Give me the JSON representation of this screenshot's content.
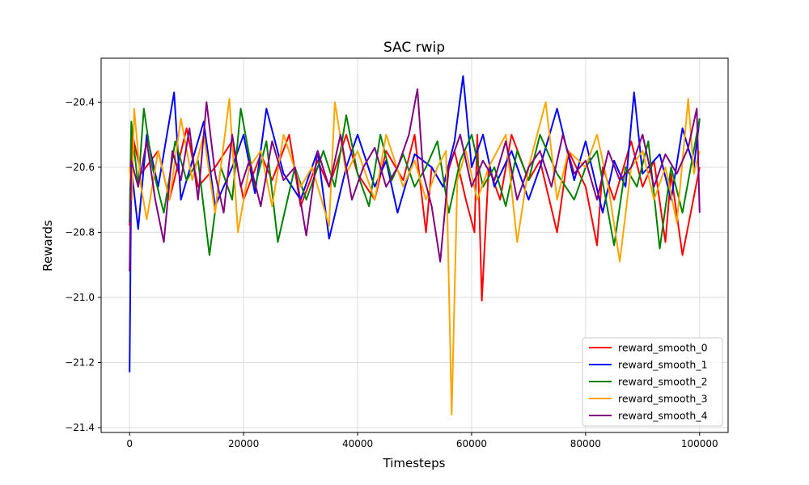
{
  "chart_data": {
    "type": "line",
    "title": "SAC rwip",
    "xlabel": "Timesteps",
    "ylabel": "Rewards",
    "xlim": [
      -5000,
      105000
    ],
    "ylim": [
      -21.415,
      -20.265
    ],
    "x_ticks": [
      0,
      20000,
      40000,
      60000,
      80000,
      100000
    ],
    "x_tick_labels": [
      "0",
      "20000",
      "40000",
      "60000",
      "80000",
      "100000"
    ],
    "y_ticks": [
      -21.4,
      -21.2,
      -21.0,
      -20.8,
      -20.6,
      -20.4
    ],
    "y_tick_labels": [
      "−21.4",
      "−21.2",
      "−21.0",
      "−20.8",
      "−20.6",
      "−20.4"
    ],
    "grid": true,
    "legend_position": "lower-right",
    "series": [
      {
        "name": "reward_smooth_0",
        "color": "#ff0000",
        "x": [
          0,
          500,
          2000,
          5000,
          7000,
          10000,
          12000,
          15000,
          18000,
          20000,
          23000,
          25000,
          28000,
          30000,
          33000,
          35000,
          38000,
          40000,
          43000,
          45000,
          48000,
          50000,
          52000,
          53000,
          55000,
          57000,
          59000,
          60500,
          61000,
          61800,
          63000,
          65000,
          67000,
          70000,
          72000,
          75000,
          77000,
          80000,
          82000,
          83000,
          85000,
          88000,
          90000,
          92000,
          94000,
          95000,
          97000,
          100000
        ],
        "y": [
          -20.78,
          -20.5,
          -20.62,
          -20.55,
          -20.7,
          -20.48,
          -20.66,
          -20.6,
          -20.52,
          -20.7,
          -20.56,
          -20.64,
          -20.5,
          -20.72,
          -20.58,
          -20.66,
          -20.5,
          -20.62,
          -20.7,
          -20.55,
          -20.64,
          -20.5,
          -20.8,
          -20.6,
          -20.66,
          -20.55,
          -20.7,
          -20.8,
          -20.5,
          -21.01,
          -20.6,
          -20.7,
          -20.5,
          -20.64,
          -20.58,
          -20.8,
          -20.55,
          -20.66,
          -20.84,
          -20.6,
          -20.7,
          -20.52,
          -20.66,
          -20.58,
          -20.83,
          -20.62,
          -20.87,
          -20.6
        ]
      },
      {
        "name": "reward_smooth_1",
        "color": "#0000ff",
        "x": [
          0,
          300,
          1500,
          3000,
          5000,
          7800,
          9000,
          11000,
          13000,
          15000,
          18000,
          20000,
          22000,
          24000,
          27000,
          30000,
          33000,
          35000,
          38000,
          40000,
          43000,
          45000,
          47000,
          50000,
          53000,
          55000,
          57000,
          58500,
          60000,
          62000,
          64000,
          67000,
          70000,
          72000,
          75000,
          78000,
          80000,
          83000,
          85000,
          87000,
          88500,
          90000,
          93000,
          95000,
          97000,
          99000,
          100000
        ],
        "y": [
          -21.23,
          -20.6,
          -20.79,
          -20.5,
          -20.66,
          -20.37,
          -20.7,
          -20.58,
          -20.46,
          -20.72,
          -20.6,
          -20.5,
          -20.68,
          -20.42,
          -20.62,
          -20.7,
          -20.55,
          -20.82,
          -20.6,
          -20.5,
          -20.66,
          -20.58,
          -20.74,
          -20.56,
          -20.6,
          -20.66,
          -20.52,
          -20.32,
          -20.6,
          -20.5,
          -20.66,
          -20.55,
          -20.7,
          -20.6,
          -20.42,
          -20.64,
          -20.52,
          -20.74,
          -20.58,
          -20.66,
          -20.37,
          -20.62,
          -20.56,
          -20.7,
          -20.48,
          -20.6,
          -20.45
        ]
      },
      {
        "name": "reward_smooth_2",
        "color": "#008000",
        "x": [
          0,
          300,
          1500,
          2500,
          4000,
          6000,
          8000,
          10000,
          12000,
          14000,
          16000,
          18000,
          19500,
          22000,
          24000,
          26000,
          29000,
          31000,
          34000,
          36000,
          38000,
          40000,
          42000,
          44000,
          46000,
          48000,
          50000,
          52000,
          54000,
          56000,
          58000,
          60000,
          62000,
          64000,
          66000,
          68000,
          70000,
          72000,
          75000,
          78000,
          80000,
          82000,
          85000,
          87000,
          89000,
          91000,
          93000,
          95000,
          97000,
          100000
        ],
        "y": [
          -20.77,
          -20.46,
          -20.66,
          -20.42,
          -20.6,
          -20.74,
          -20.52,
          -20.64,
          -20.58,
          -20.87,
          -20.6,
          -20.7,
          -20.42,
          -20.66,
          -20.52,
          -20.83,
          -20.6,
          -20.7,
          -20.55,
          -20.66,
          -20.44,
          -20.62,
          -20.72,
          -20.5,
          -20.64,
          -20.56,
          -20.66,
          -20.6,
          -20.52,
          -20.74,
          -20.58,
          -20.5,
          -20.66,
          -20.6,
          -20.72,
          -20.55,
          -20.64,
          -20.5,
          -20.62,
          -20.7,
          -20.6,
          -20.55,
          -20.84,
          -20.6,
          -20.66,
          -20.52,
          -20.85,
          -20.6,
          -20.74,
          -20.45
        ]
      },
      {
        "name": "reward_smooth_3",
        "color": "#ffa500",
        "x": [
          0,
          400,
          800,
          2000,
          3000,
          5000,
          7000,
          9000,
          11000,
          13000,
          15000,
          17500,
          19000,
          21000,
          23000,
          25000,
          27000,
          30000,
          32000,
          35000,
          36000,
          38000,
          40000,
          43000,
          45000,
          48000,
          50000,
          52000,
          54000,
          55500,
          56500,
          57500,
          59000,
          61000,
          63000,
          66000,
          68000,
          70000,
          73000,
          75000,
          77000,
          80000,
          82000,
          84000,
          86000,
          88000,
          90000,
          92000,
          94000,
          96000,
          98000,
          99000,
          100000
        ],
        "y": [
          -20.6,
          -20.7,
          -20.42,
          -20.66,
          -20.76,
          -20.55,
          -20.7,
          -20.45,
          -20.64,
          -20.5,
          -20.74,
          -20.39,
          -20.8,
          -20.6,
          -20.55,
          -20.72,
          -20.5,
          -20.66,
          -20.6,
          -20.78,
          -20.4,
          -20.62,
          -20.55,
          -20.7,
          -20.5,
          -20.66,
          -20.58,
          -20.7,
          -20.6,
          -20.55,
          -21.36,
          -20.64,
          -20.55,
          -20.7,
          -20.6,
          -20.5,
          -20.83,
          -20.6,
          -20.4,
          -20.7,
          -20.55,
          -20.6,
          -20.5,
          -20.66,
          -20.89,
          -20.6,
          -20.55,
          -20.7,
          -20.6,
          -20.77,
          -20.39,
          -20.62,
          -20.55
        ]
      },
      {
        "name": "reward_smooth_4",
        "color": "#800080",
        "x": [
          0,
          300,
          1500,
          3000,
          4500,
          6000,
          7500,
          9000,
          10500,
          12000,
          13500,
          15000,
          16500,
          18000,
          19500,
          21000,
          23000,
          25000,
          27000,
          29000,
          31000,
          33000,
          35000,
          37000,
          39000,
          41000,
          43000,
          45000,
          47000,
          49000,
          50500,
          51500,
          53000,
          54500,
          56000,
          58000,
          60000,
          62000,
          64000,
          66000,
          68000,
          70000,
          72000,
          74000,
          76000,
          78000,
          80000,
          82000,
          84000,
          86000,
          88000,
          90000,
          92000,
          94000,
          96000,
          98000,
          99500,
          100000
        ],
        "y": [
          -20.92,
          -20.58,
          -20.66,
          -20.52,
          -20.7,
          -20.83,
          -20.55,
          -20.64,
          -20.48,
          -20.7,
          -20.4,
          -20.62,
          -20.74,
          -20.5,
          -20.66,
          -20.58,
          -20.72,
          -20.52,
          -20.64,
          -20.6,
          -20.81,
          -20.55,
          -20.66,
          -20.5,
          -20.7,
          -20.6,
          -20.54,
          -20.66,
          -20.6,
          -20.5,
          -20.36,
          -20.62,
          -20.72,
          -20.89,
          -20.6,
          -20.5,
          -20.66,
          -20.58,
          -20.64,
          -20.52,
          -20.7,
          -20.6,
          -20.55,
          -20.66,
          -20.5,
          -20.62,
          -20.58,
          -20.7,
          -20.55,
          -20.64,
          -20.6,
          -20.5,
          -20.66,
          -20.56,
          -20.62,
          -20.54,
          -20.42,
          -20.74
        ]
      }
    ]
  }
}
